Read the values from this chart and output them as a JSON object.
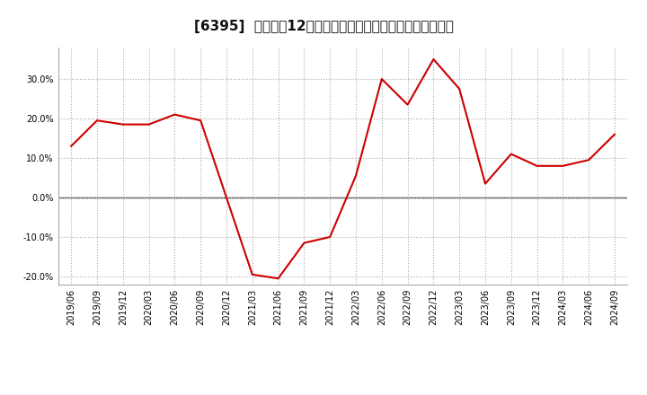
{
  "title": "[6395]  売上高の12か月移動合計の対前年同期増減率の推移",
  "line_color": "#cc0000",
  "background_color": "#ffffff",
  "plot_background": "#ffffff",
  "grid_color": "#aaaaaa",
  "zero_line_color": "#444444",
  "xlabels": [
    "2019/06",
    "2019/09",
    "2019/12",
    "2020/03",
    "2020/06",
    "2020/09",
    "2020/12",
    "2021/03",
    "2021/06",
    "2021/09",
    "2021/12",
    "2022/03",
    "2022/06",
    "2022/09",
    "2022/12",
    "2023/03",
    "2023/06",
    "2023/09",
    "2023/12",
    "2024/03",
    "2024/06",
    "2024/09"
  ],
  "values": [
    13.0,
    19.5,
    18.5,
    18.5,
    21.0,
    19.5,
    0.0,
    -19.5,
    -20.5,
    -11.5,
    -10.0,
    5.5,
    30.0,
    23.5,
    35.0,
    27.5,
    3.5,
    11.0,
    8.0,
    8.0,
    9.5,
    16.0
  ],
  "ylim": [
    -22,
    38
  ],
  "yticks": [
    -20.0,
    -10.0,
    0.0,
    10.0,
    20.0,
    30.0
  ],
  "title_fontsize": 11,
  "tick_fontsize": 7
}
